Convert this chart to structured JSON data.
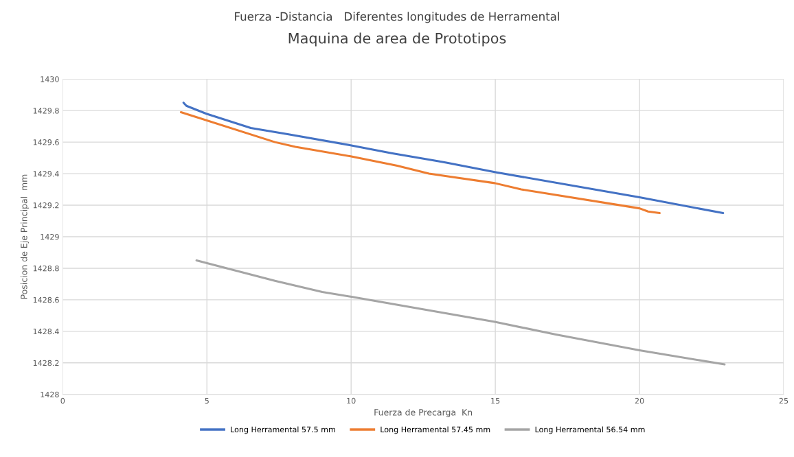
{
  "chart_data": {
    "type": "line",
    "title": "Fuerza -Distancia   Diferentes longitudes de Herramental",
    "subtitle": "Maquina de area de Prototipos",
    "xlabel": "Fuerza de Precarga  Kn",
    "ylabel": "Posicion de Eje Principal  mm",
    "xlim": [
      0,
      25
    ],
    "xticks": [
      0,
      5,
      10,
      15,
      20,
      25
    ],
    "ylim": [
      1428,
      1430
    ],
    "yticks": [
      1428,
      1428.2,
      1428.4,
      1428.6,
      1428.8,
      1429,
      1429.2,
      1429.4,
      1429.6,
      1429.8,
      1430
    ],
    "grid": true,
    "legend": "bottom",
    "marker": "none",
    "line_style": "solid",
    "series": [
      {
        "name": "Long Herramental 57.5 mm",
        "color": "#4472c4",
        "x": [
          4.19,
          4.29,
          4.98,
          6.52,
          7.83,
          9.98,
          11.4,
          13.0,
          13.3,
          14.98,
          20.0,
          22.9
        ],
        "values": [
          1429.85,
          1429.83,
          1429.78,
          1429.69,
          1429.65,
          1429.58,
          1429.53,
          1429.48,
          1429.47,
          1429.41,
          1429.25,
          1429.15
        ]
      },
      {
        "name": "Long Herramental 57.45 mm",
        "color": "#ed7d31",
        "x": [
          4.1,
          7.36,
          8.07,
          9.98,
          11.6,
          12.7,
          14.98,
          15.9,
          20.0,
          20.3,
          20.7
        ],
        "values": [
          1429.79,
          1429.6,
          1429.57,
          1429.51,
          1429.45,
          1429.4,
          1429.34,
          1429.3,
          1429.18,
          1429.16,
          1429.15
        ]
      },
      {
        "name": "Long Herramental 56.54 mm",
        "color": "#a5a5a5",
        "x": [
          4.64,
          7.36,
          9.0,
          9.98,
          14.98,
          17.1,
          20.0,
          22.95
        ],
        "values": [
          1428.85,
          1428.72,
          1428.65,
          1428.62,
          1428.46,
          1428.38,
          1428.28,
          1428.19
        ]
      }
    ]
  }
}
